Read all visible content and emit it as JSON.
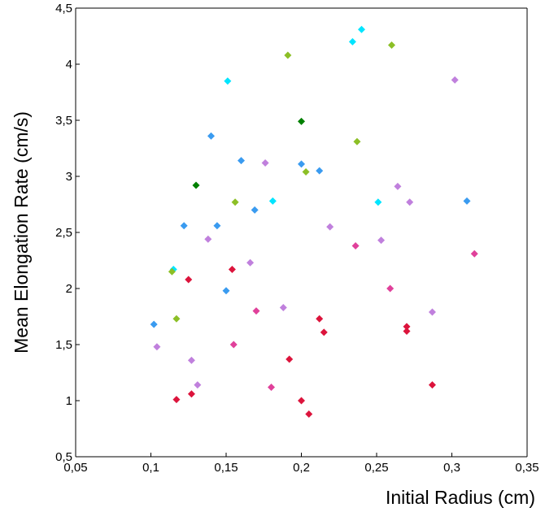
{
  "chart_data": {
    "type": "scatter",
    "title": "",
    "xlabel": "Initial Radius (cm)",
    "ylabel": "Mean Elongation Rate (cm/s)",
    "xlim": [
      0.05,
      0.35
    ],
    "ylim": [
      0.5,
      4.5
    ],
    "x_ticks": [
      0.05,
      0.1,
      0.15,
      0.2,
      0.25,
      0.3,
      0.35
    ],
    "x_tick_labels": [
      "0,05",
      "0,1",
      "0,15",
      "0,2",
      "0,25",
      "0,3",
      "0,35"
    ],
    "y_ticks": [
      0.5,
      1,
      1.5,
      2,
      2.5,
      3,
      3.5,
      4,
      4.5
    ],
    "y_tick_labels": [
      "0,5",
      "1",
      "1,5",
      "2",
      "2,5",
      "3",
      "3,5",
      "4",
      "4,5"
    ],
    "grid": false,
    "marker": "diamond",
    "series": [
      {
        "color": "#00e5ff",
        "points": [
          [
            0.115,
            2.17
          ],
          [
            0.151,
            3.85
          ],
          [
            0.181,
            2.78
          ],
          [
            0.234,
            4.2
          ],
          [
            0.24,
            4.31
          ],
          [
            0.251,
            2.77
          ]
        ]
      },
      {
        "color": "#3a9bf0",
        "points": [
          [
            0.102,
            1.68
          ],
          [
            0.122,
            2.56
          ],
          [
            0.14,
            3.36
          ],
          [
            0.144,
            2.56
          ],
          [
            0.15,
            1.98
          ],
          [
            0.16,
            3.14
          ],
          [
            0.169,
            2.7
          ],
          [
            0.2,
            3.11
          ],
          [
            0.212,
            3.05
          ],
          [
            0.31,
            2.78
          ]
        ]
      },
      {
        "color": "#8cbf26",
        "points": [
          [
            0.114,
            2.15
          ],
          [
            0.117,
            1.73
          ],
          [
            0.156,
            2.77
          ],
          [
            0.191,
            4.08
          ],
          [
            0.203,
            3.04
          ],
          [
            0.237,
            3.31
          ],
          [
            0.26,
            4.17
          ]
        ]
      },
      {
        "color": "#008000",
        "points": [
          [
            0.13,
            2.92
          ],
          [
            0.2,
            3.49
          ]
        ]
      },
      {
        "color": "#c080dd",
        "points": [
          [
            0.104,
            1.48
          ],
          [
            0.127,
            1.36
          ],
          [
            0.131,
            1.14
          ],
          [
            0.138,
            2.44
          ],
          [
            0.166,
            2.23
          ],
          [
            0.176,
            3.12
          ],
          [
            0.188,
            1.83
          ],
          [
            0.219,
            2.55
          ],
          [
            0.253,
            2.43
          ],
          [
            0.264,
            2.91
          ],
          [
            0.272,
            2.77
          ],
          [
            0.287,
            1.79
          ],
          [
            0.302,
            3.86
          ]
        ]
      },
      {
        "color": "#e0409a",
        "points": [
          [
            0.155,
            1.5
          ],
          [
            0.17,
            1.8
          ],
          [
            0.18,
            1.12
          ],
          [
            0.236,
            2.38
          ],
          [
            0.259,
            2.0
          ],
          [
            0.315,
            2.31
          ]
        ]
      },
      {
        "color": "#dc143c",
        "points": [
          [
            0.117,
            1.01
          ],
          [
            0.125,
            2.08
          ],
          [
            0.127,
            1.06
          ],
          [
            0.154,
            2.17
          ],
          [
            0.192,
            1.37
          ],
          [
            0.2,
            1.0
          ],
          [
            0.205,
            0.88
          ],
          [
            0.212,
            1.73
          ],
          [
            0.215,
            1.61
          ],
          [
            0.27,
            1.66
          ],
          [
            0.27,
            1.62
          ],
          [
            0.287,
            1.14
          ]
        ]
      }
    ]
  }
}
